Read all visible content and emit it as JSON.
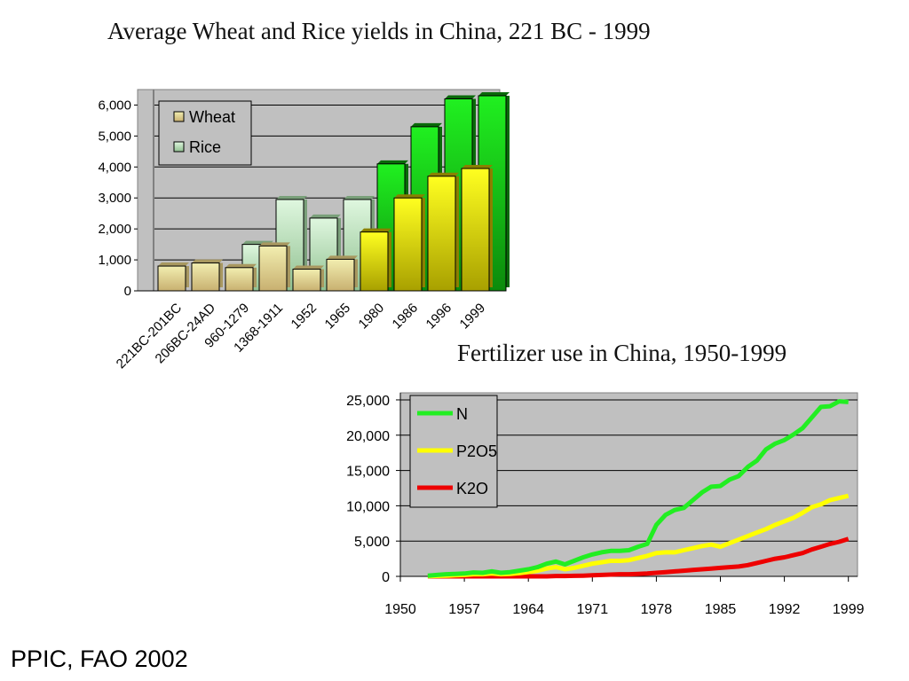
{
  "chart_data": [
    {
      "type": "bar",
      "title": "Average Wheat and Rice yields in China, 221 BC - 1999",
      "categories": [
        "221BC-201BC",
        "206BC-24AD",
        "960-1279",
        "1368-1911",
        "1952",
        "1965",
        "1980",
        "1986",
        "1996",
        "1999"
      ],
      "series": [
        {
          "name": "Wheat",
          "values": [
            800,
            900,
            750,
            1450,
            700,
            1020,
            1900,
            3000,
            3700,
            3950
          ]
        },
        {
          "name": "Rice",
          "values": [
            null,
            null,
            1500,
            2950,
            2350,
            2950,
            4100,
            5300,
            6200,
            6300
          ]
        }
      ],
      "ylim": [
        0,
        6500
      ],
      "yticks": [
        0,
        1000,
        2000,
        3000,
        4000,
        5000,
        6000
      ],
      "ytick_labels": [
        "0",
        "1,000",
        "2,000",
        "3,000",
        "4,000",
        "5,000",
        "6,000"
      ],
      "legend_position": "top-left",
      "grid": true,
      "colors": {
        "wheat_old": "#e8e09a",
        "rice_old": "#c9ecc9",
        "wheat_new": "#f5f500",
        "rice_new": "#22d822",
        "plot_bg": "#c0c0c0"
      }
    },
    {
      "type": "line",
      "title": "Fertilizer use in China, 1950-1999",
      "x": [
        1953,
        1954,
        1955,
        1956,
        1957,
        1958,
        1959,
        1960,
        1961,
        1962,
        1963,
        1964,
        1965,
        1966,
        1967,
        1968,
        1969,
        1970,
        1971,
        1972,
        1973,
        1974,
        1975,
        1976,
        1977,
        1978,
        1979,
        1980,
        1981,
        1982,
        1983,
        1984,
        1985,
        1986,
        1987,
        1988,
        1989,
        1990,
        1991,
        1992,
        1993,
        1994,
        1995,
        1996,
        1997,
        1998,
        1999
      ],
      "series": [
        {
          "name": "N",
          "color": "#22ee22",
          "values": [
            100,
            200,
            300,
            350,
            400,
            550,
            500,
            700,
            500,
            600,
            800,
            1000,
            1300,
            1800,
            2100,
            1700,
            2200,
            2700,
            3100,
            3400,
            3600,
            3600,
            3700,
            4200,
            4600,
            7300,
            8700,
            9400,
            9700,
            10800,
            11900,
            12700,
            12800,
            13700,
            14200,
            15500,
            16400,
            18000,
            18800,
            19300,
            20100,
            21000,
            22500,
            24000,
            24100,
            24800,
            24700
          ]
        },
        {
          "name": "P2O5",
          "color": "#ffff00",
          "values": [
            30,
            60,
            100,
            150,
            200,
            300,
            300,
            400,
            300,
            350,
            450,
            600,
            800,
            1100,
            1300,
            1000,
            1200,
            1500,
            1800,
            2000,
            2200,
            2200,
            2300,
            2600,
            2900,
            3300,
            3400,
            3400,
            3700,
            4000,
            4300,
            4500,
            4200,
            4700,
            5200,
            5700,
            6200,
            6700,
            7300,
            7800,
            8300,
            9000,
            9800,
            10200,
            10800,
            11100,
            11400
          ]
        },
        {
          "name": "K2O",
          "color": "#ee0000",
          "values": [
            0,
            0,
            0,
            0,
            0,
            0,
            0,
            0,
            0,
            0,
            0,
            0,
            0,
            0,
            50,
            50,
            80,
            100,
            150,
            200,
            250,
            300,
            300,
            350,
            400,
            500,
            600,
            700,
            800,
            900,
            1000,
            1100,
            1200,
            1300,
            1400,
            1600,
            1900,
            2200,
            2500,
            2700,
            3000,
            3300,
            3800,
            4200,
            4600,
            4900,
            5300
          ]
        }
      ],
      "xlim": [
        1950,
        2000
      ],
      "xticks": [
        1950,
        1957,
        1964,
        1971,
        1978,
        1985,
        1992,
        1999
      ],
      "ylim": [
        0,
        26000
      ],
      "yticks": [
        0,
        5000,
        10000,
        15000,
        20000,
        25000
      ],
      "ytick_labels": [
        "0",
        "5,000",
        "10,000",
        "15,000",
        "20,000",
        "25,000"
      ],
      "legend_position": "top-left",
      "grid": true
    }
  ],
  "source": "PPIC, FAO 2002"
}
